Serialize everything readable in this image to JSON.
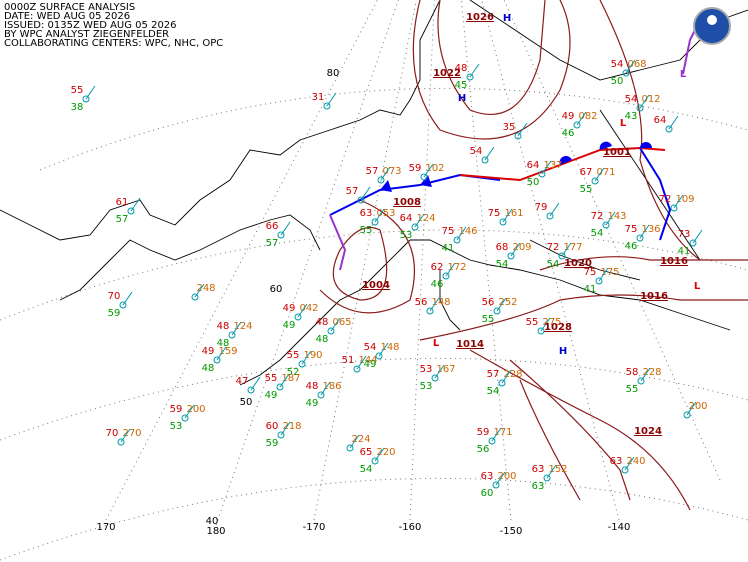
{
  "header": {
    "lines": [
      "0000Z SURFACE ANALYSIS",
      "DATE: WED AUG 05 2026",
      "ISSUED: 0135Z WED AUG 05 2026",
      "BY WPC ANALYST ZIEGENFELDER",
      "COLLABORATING CENTERS: WPC, NHC, OPC"
    ]
  },
  "grid_labels": {
    "latitudes": [
      "80",
      "60",
      "50",
      "40"
    ],
    "longitudes": [
      "170",
      "180",
      "-170",
      "-160",
      "-150",
      "-140"
    ]
  },
  "pressure_labels": [
    "1026",
    "1022",
    "1008",
    "1004",
    "1014",
    "1020",
    "1016",
    "1016",
    "1028",
    "1024",
    "1001"
  ],
  "centers": [
    "H",
    "H",
    "H",
    "L",
    "L",
    "L",
    "L"
  ],
  "stations": [
    {
      "temp": "55",
      "dew": "38"
    },
    {
      "temp": "31"
    },
    {
      "temp": "57",
      "pressure": "073"
    },
    {
      "temp": "59",
      "pressure": "102"
    },
    {
      "temp": "57"
    },
    {
      "temp": "61",
      "dew": "57"
    },
    {
      "temp": "66",
      "dew": "57"
    },
    {
      "temp": "63",
      "dew": "55",
      "pressure": "053"
    },
    {
      "temp": "64",
      "dew": "53",
      "pressure": "124"
    },
    {
      "temp": "75",
      "dew": "41",
      "pressure": "146"
    },
    {
      "temp": "75",
      "pressure": "161"
    },
    {
      "temp": "79"
    },
    {
      "temp": "68",
      "dew": "54",
      "pressure": "209"
    },
    {
      "temp": "72",
      "dew": "54",
      "pressure": "177"
    },
    {
      "temp": "72",
      "dew": "54",
      "pressure": "143"
    },
    {
      "temp": "75",
      "dew": "46",
      "pressure": "136"
    },
    {
      "temp": "72",
      "pressure": "109"
    },
    {
      "temp": "73",
      "dew": "41"
    },
    {
      "temp": "62",
      "dew": "46",
      "pressure": "172"
    },
    {
      "temp": "56",
      "pressure": "148"
    },
    {
      "temp": "56",
      "dew": "55",
      "pressure": "252"
    },
    {
      "temp": "55",
      "pressure": "275"
    },
    {
      "temp": "75",
      "dew": "41",
      "pressure": "175"
    },
    {
      "temp": "70",
      "dew": "59"
    },
    {
      "pressure": "248"
    },
    {
      "temp": "48",
      "dew": "48",
      "pressure": "124"
    },
    {
      "temp": "49",
      "dew": "48",
      "pressure": "159"
    },
    {
      "temp": "49",
      "dew": "49",
      "pressure": "042"
    },
    {
      "temp": "48",
      "dew": "48",
      "pressure": "065"
    },
    {
      "temp": "55",
      "dew": "52",
      "pressure": "190"
    },
    {
      "temp": "51",
      "pressure": "144"
    },
    {
      "temp": "54",
      "dew": "49",
      "pressure": "148"
    },
    {
      "temp": "55",
      "dew": "49",
      "pressure": "187"
    },
    {
      "temp": "47"
    },
    {
      "temp": "48",
      "dew": "49",
      "pressure": "186"
    },
    {
      "temp": "53",
      "dew": "53",
      "pressure": "167"
    },
    {
      "temp": "57",
      "dew": "54",
      "pressure": "228"
    },
    {
      "temp": "59",
      "dew": "53",
      "pressure": "200"
    },
    {
      "temp": "70",
      "pressure": "270"
    },
    {
      "temp": "60",
      "dew": "59",
      "pressure": "218"
    },
    {
      "pressure": "224"
    },
    {
      "temp": "65",
      "dew": "54",
      "pressure": "220"
    },
    {
      "temp": "59",
      "dew": "56",
      "pressure": "171"
    },
    {
      "temp": "63",
      "dew": "60",
      "pressure": "200"
    },
    {
      "temp": "63",
      "dew": "63",
      "pressure": "152"
    },
    {
      "temp": "63",
      "pressure": "240"
    },
    {
      "temp": "58",
      "dew": "55",
      "pressure": "228"
    },
    {
      "pressure": "200"
    },
    {
      "temp": "35"
    },
    {
      "temp": "54"
    },
    {
      "temp": "64",
      "dew": "50",
      "pressure": "137"
    },
    {
      "temp": "49",
      "dew": "46",
      "pressure": "082"
    },
    {
      "temp": "67",
      "dew": "55",
      "pressure": "071"
    },
    {
      "temp": "54",
      "dew": "43",
      "pressure": "012"
    },
    {
      "temp": "54",
      "dew": "50",
      "pressure": "068"
    },
    {
      "temp": "64"
    },
    {
      "temp": "48",
      "dew": "45"
    }
  ]
}
